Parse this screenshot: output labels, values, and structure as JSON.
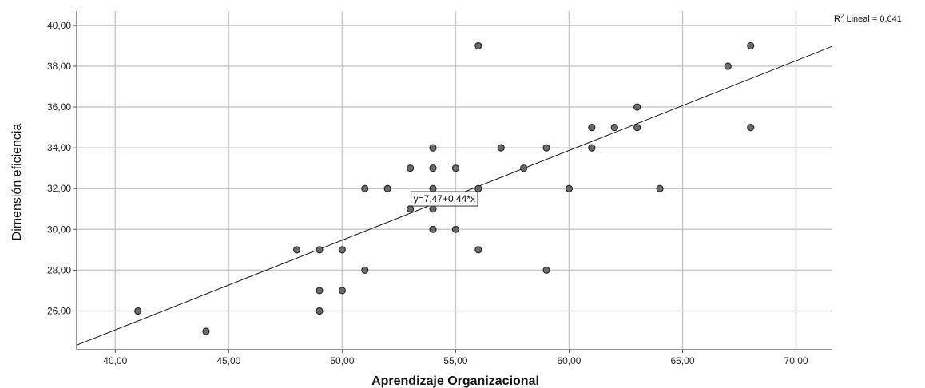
{
  "chart_data": {
    "type": "scatter",
    "xlabel": "Aprendizaje Organizacional",
    "ylabel": "Dimensión eficiencia",
    "xlim": [
      38.3,
      71.6
    ],
    "ylim": [
      24.1,
      40.7
    ],
    "x_ticks": [
      40,
      45,
      50,
      55,
      60,
      65,
      70
    ],
    "x_tick_labels": [
      "40,00",
      "45,00",
      "50,00",
      "55,00",
      "60,00",
      "65,00",
      "70,00"
    ],
    "y_ticks": [
      26,
      28,
      30,
      32,
      34,
      36,
      38,
      40
    ],
    "y_tick_labels": [
      "26,00",
      "28,00",
      "30,00",
      "32,00",
      "34,00",
      "36,00",
      "38,00",
      "40,00"
    ],
    "grid": true,
    "points": [
      [
        41,
        26
      ],
      [
        44,
        25
      ],
      [
        48,
        29
      ],
      [
        49,
        29
      ],
      [
        49,
        27
      ],
      [
        49,
        26
      ],
      [
        50,
        29
      ],
      [
        50,
        27
      ],
      [
        51,
        32
      ],
      [
        51,
        28
      ],
      [
        52,
        32
      ],
      [
        53,
        33
      ],
      [
        53,
        31
      ],
      [
        54,
        34
      ],
      [
        54,
        33
      ],
      [
        54,
        32
      ],
      [
        54,
        31
      ],
      [
        54,
        30
      ],
      [
        55,
        33
      ],
      [
        55,
        30
      ],
      [
        56,
        39
      ],
      [
        56,
        32
      ],
      [
        56,
        29
      ],
      [
        57,
        34
      ],
      [
        58,
        33
      ],
      [
        59,
        34
      ],
      [
        59,
        28
      ],
      [
        60,
        32
      ],
      [
        61,
        35
      ],
      [
        61,
        34
      ],
      [
        62,
        35
      ],
      [
        63,
        36
      ],
      [
        63,
        35
      ],
      [
        64,
        32
      ],
      [
        67,
        38
      ],
      [
        68,
        39
      ],
      [
        68,
        35
      ]
    ],
    "fit_line": {
      "intercept": 7.47,
      "slope": 0.44
    },
    "fit_equation_label": "y=7,47+0,44*x",
    "fit_equation_anchor": [
      53,
      31.85
    ],
    "r2_label_prefix": "R",
    "r2_label_sup": "2",
    "r2_label_suffix": " Lineal = 0,641",
    "colors": {
      "point_fill": "#6b6b6b",
      "point_stroke": "#2b2b2b",
      "grid": "#c8c8c8",
      "axis": "#555555",
      "fit_line": "#1a1a1a"
    }
  }
}
